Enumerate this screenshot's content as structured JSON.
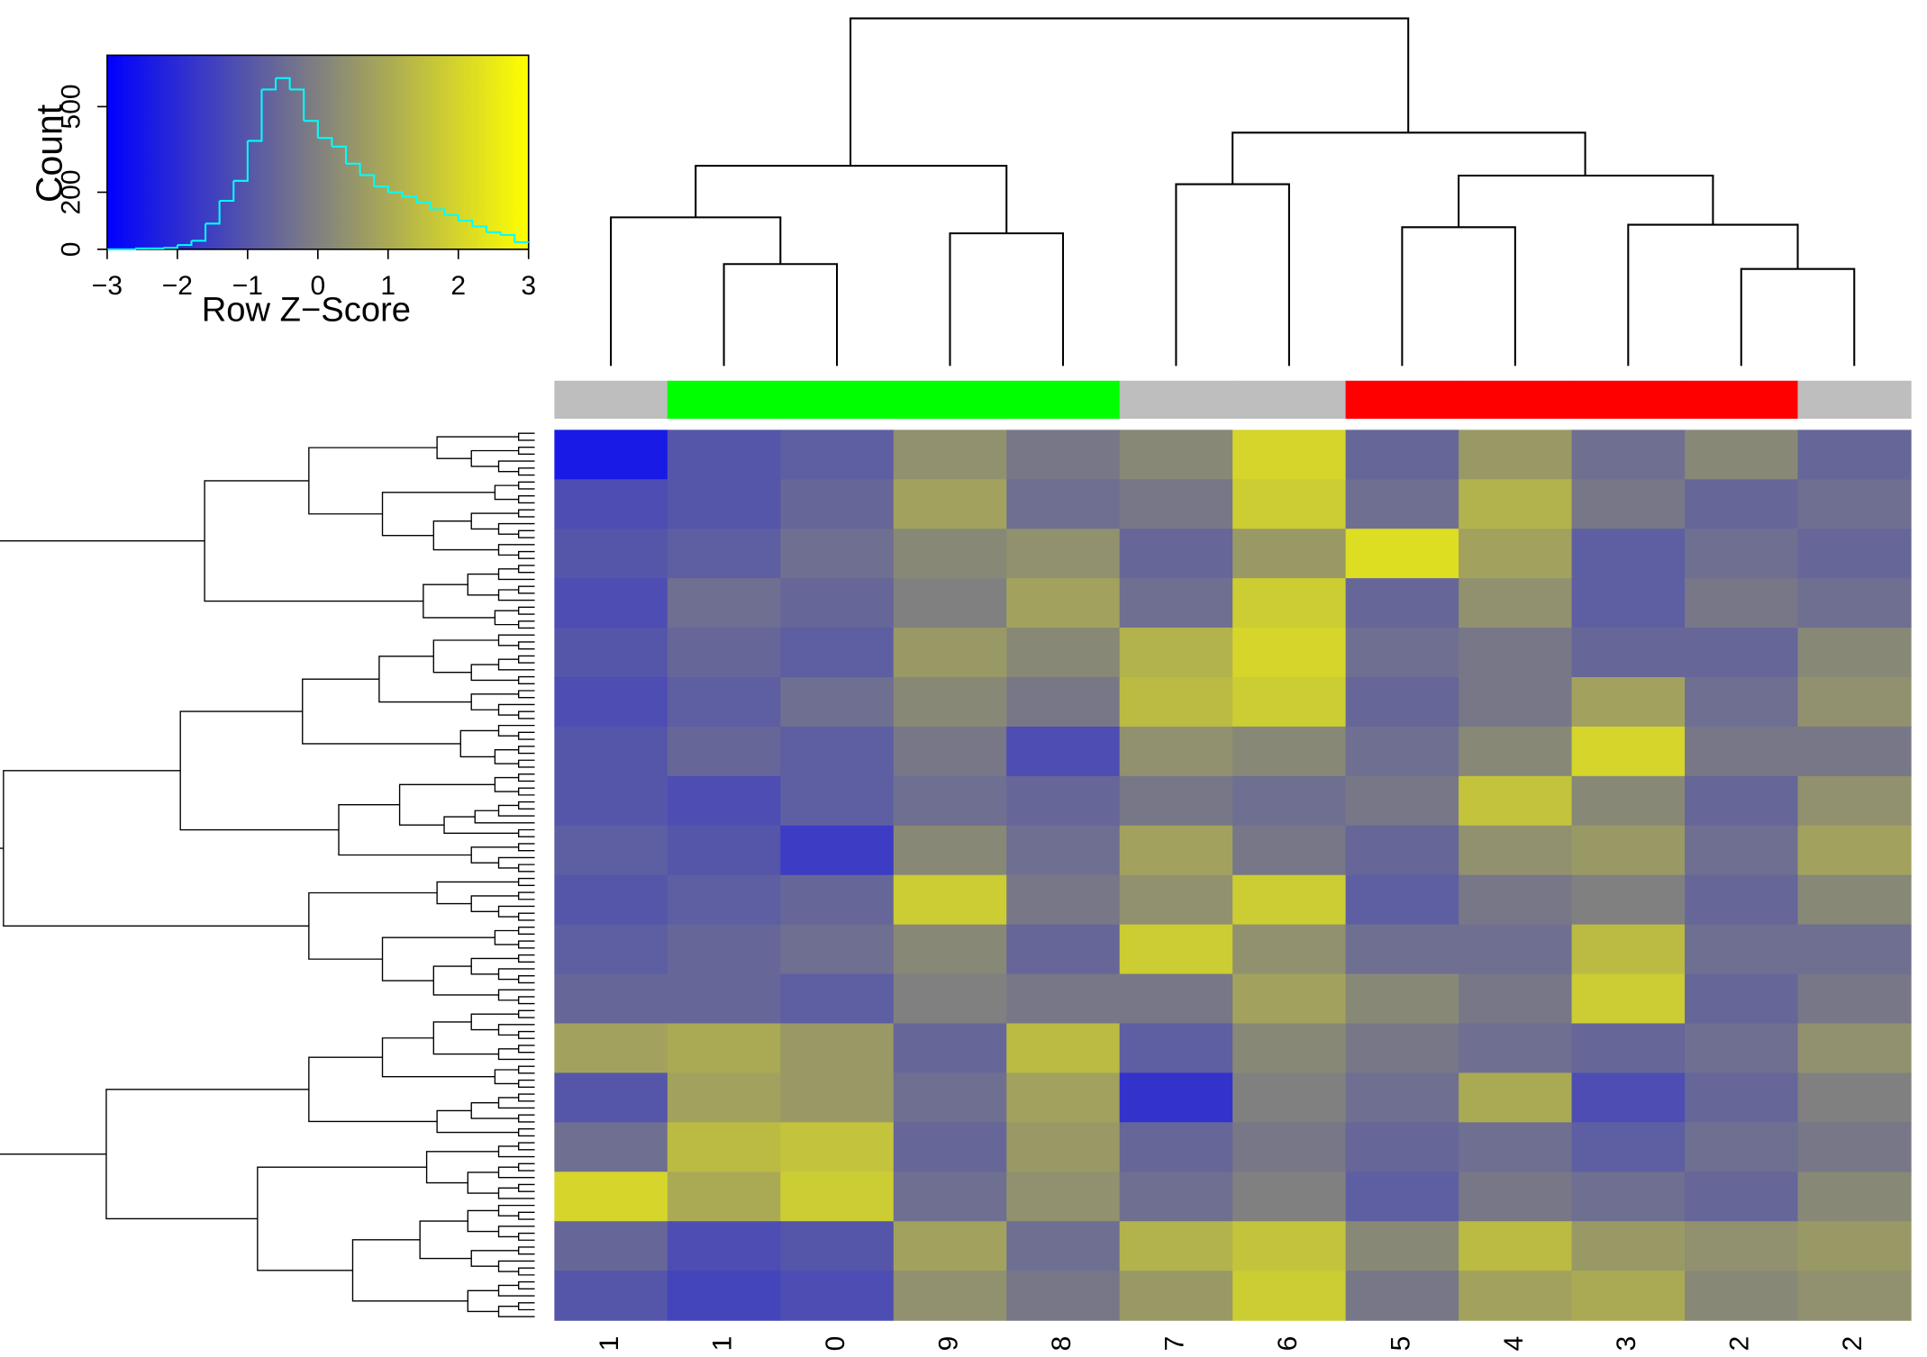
{
  "chart_data": [
    {
      "type": "heatmap",
      "x": [
        "1",
        "1",
        "0",
        "9",
        "8",
        "7",
        "6",
        "5",
        "4",
        "3",
        "2",
        "2"
      ],
      "column_colors": [
        "#bebebe",
        "#00ff00",
        "#00ff00",
        "#00ff00",
        "#00ff00",
        "#bebebe",
        "#bebebe",
        "#ff0000",
        "#ff0000",
        "#ff0000",
        "#ff0000",
        "#bebebe"
      ],
      "colorscale": [
        "#0000ff",
        "#808080",
        "#ffff00"
      ],
      "zlim": [
        -3,
        3
      ],
      "values": [
        [
          -2.4,
          -1.0,
          -0.8,
          0.4,
          -0.2,
          0.2,
          2.0,
          -0.6,
          0.6,
          -0.4,
          0.2,
          -0.6
        ],
        [
          -1.2,
          -1.0,
          -0.6,
          0.8,
          -0.4,
          -0.2,
          1.8,
          -0.4,
          1.2,
          -0.2,
          -0.6,
          -0.4
        ],
        [
          -1.0,
          -0.8,
          -0.4,
          0.2,
          0.4,
          -0.6,
          0.6,
          2.2,
          0.8,
          -0.8,
          -0.4,
          -0.6
        ],
        [
          -1.2,
          -0.4,
          -0.6,
          0.0,
          0.8,
          -0.4,
          1.8,
          -0.6,
          0.4,
          -0.8,
          -0.2,
          -0.4
        ],
        [
          -1.0,
          -0.6,
          -0.8,
          0.6,
          0.2,
          1.2,
          2.0,
          -0.4,
          -0.2,
          -0.6,
          -0.6,
          0.2
        ],
        [
          -1.2,
          -0.8,
          -0.4,
          0.2,
          -0.2,
          1.4,
          1.8,
          -0.6,
          -0.2,
          0.8,
          -0.4,
          0.4
        ],
        [
          -1.0,
          -0.6,
          -0.8,
          -0.2,
          -1.2,
          0.4,
          0.2,
          -0.4,
          0.2,
          2.0,
          -0.2,
          -0.2
        ],
        [
          -1.0,
          -1.2,
          -0.8,
          -0.4,
          -0.6,
          -0.2,
          -0.4,
          -0.2,
          1.6,
          0.2,
          -0.6,
          0.4
        ],
        [
          -0.8,
          -1.0,
          -1.6,
          0.2,
          -0.4,
          0.8,
          -0.2,
          -0.6,
          0.4,
          0.6,
          -0.4,
          0.8
        ],
        [
          -1.0,
          -0.8,
          -0.6,
          1.8,
          -0.2,
          0.4,
          1.8,
          -0.8,
          -0.2,
          0.0,
          -0.6,
          0.2
        ],
        [
          -0.8,
          -0.6,
          -0.4,
          0.2,
          -0.6,
          1.8,
          0.4,
          -0.4,
          -0.4,
          1.4,
          -0.4,
          -0.4
        ],
        [
          -0.6,
          -0.6,
          -0.8,
          0.0,
          -0.2,
          -0.2,
          0.8,
          0.2,
          -0.2,
          1.8,
          -0.6,
          -0.2
        ],
        [
          0.8,
          1.0,
          0.6,
          -0.6,
          1.4,
          -0.8,
          0.2,
          -0.2,
          -0.4,
          -0.6,
          -0.4,
          0.4
        ],
        [
          -1.0,
          0.8,
          0.6,
          -0.4,
          0.8,
          -1.8,
          0.0,
          -0.4,
          1.0,
          -1.2,
          -0.6,
          0.0
        ],
        [
          -0.4,
          1.4,
          1.6,
          -0.6,
          0.6,
          -0.6,
          -0.2,
          -0.6,
          -0.4,
          -0.8,
          -0.4,
          -0.2
        ],
        [
          2.0,
          1.0,
          1.8,
          -0.4,
          0.4,
          -0.4,
          0.0,
          -0.8,
          -0.2,
          -0.4,
          -0.6,
          0.2
        ],
        [
          -0.6,
          -1.2,
          -1.0,
          0.8,
          -0.4,
          1.2,
          1.6,
          0.2,
          1.4,
          0.6,
          0.4,
          0.6
        ],
        [
          -1.0,
          -1.4,
          -1.2,
          0.4,
          -0.2,
          0.6,
          1.8,
          -0.2,
          0.8,
          1.0,
          0.2,
          0.4
        ]
      ]
    },
    {
      "type": "histogram",
      "xlabel": "Row Z−Score",
      "ylabel": "Count",
      "color": "#00ffff",
      "bins": [
        -3,
        -2.8,
        -2.6,
        -2.4,
        -2.2,
        -2,
        -1.8,
        -1.6,
        -1.4,
        -1.2,
        -1,
        -0.8,
        -0.6,
        -0.4,
        -0.2,
        0,
        0.2,
        0.4,
        0.6,
        0.8,
        1,
        1.2,
        1.4,
        1.6,
        1.8,
        2,
        2.2,
        2.4,
        2.6,
        2.8,
        3
      ],
      "counts": [
        0,
        0,
        3,
        3,
        5,
        15,
        30,
        90,
        170,
        240,
        380,
        560,
        600,
        560,
        450,
        390,
        360,
        300,
        260,
        220,
        200,
        185,
        165,
        140,
        120,
        100,
        80,
        60,
        50,
        25
      ],
      "xlim": [
        -3,
        3
      ],
      "ylim": [
        0,
        680
      ],
      "xticks": [
        {
          "value": -3,
          "label": "−3"
        },
        {
          "value": -2,
          "label": "−2"
        },
        {
          "value": -1,
          "label": "−1"
        },
        0,
        1,
        2,
        3
      ],
      "yticks": [
        0,
        200,
        500
      ]
    }
  ]
}
